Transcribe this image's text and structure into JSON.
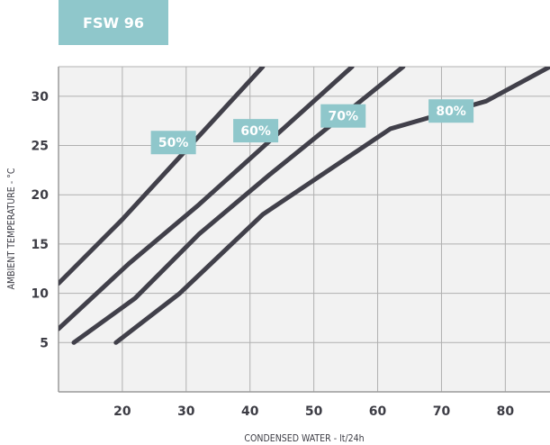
{
  "chart_data": {
    "type": "line",
    "title": "FSW 96",
    "xlabel": "CONDENSED WATER - lt/24h",
    "ylabel": "AMBIENT TEMPERATURE - °C",
    "xlim": [
      10,
      87
    ],
    "ylim": [
      0,
      33
    ],
    "x_ticks": [
      20,
      30,
      40,
      50,
      60,
      70,
      80
    ],
    "y_ticks": [
      5,
      10,
      15,
      20,
      25,
      30
    ],
    "grid": true,
    "colors": {
      "line": "#41404a",
      "badge": "#8fc7cb",
      "grid": "#b0b0b0",
      "plot_bg": "#f2f2f2"
    },
    "series": [
      {
        "name": "50%",
        "points": [
          [
            10,
            11
          ],
          [
            20,
            17.5
          ],
          [
            42,
            33
          ]
        ]
      },
      {
        "name": "60%",
        "points": [
          [
            10,
            6.4
          ],
          [
            21,
            13
          ],
          [
            32,
            19
          ],
          [
            56,
            33
          ]
        ]
      },
      {
        "name": "70%",
        "points": [
          [
            12.4,
            5
          ],
          [
            22,
            9.5
          ],
          [
            32,
            16
          ],
          [
            43,
            22
          ],
          [
            64,
            33
          ]
        ]
      },
      {
        "name": "80%",
        "points": [
          [
            19,
            5
          ],
          [
            29,
            10
          ],
          [
            42,
            18
          ],
          [
            62,
            26.7
          ],
          [
            77,
            29.5
          ],
          [
            87,
            33
          ]
        ]
      }
    ],
    "annotations": [
      {
        "text": "50%",
        "x": 28,
        "y": 25.3
      },
      {
        "text": "60%",
        "x": 40.9,
        "y": 26.5
      },
      {
        "text": "70%",
        "x": 54.6,
        "y": 28
      },
      {
        "text": "80%",
        "x": 71.5,
        "y": 28.5
      }
    ]
  }
}
